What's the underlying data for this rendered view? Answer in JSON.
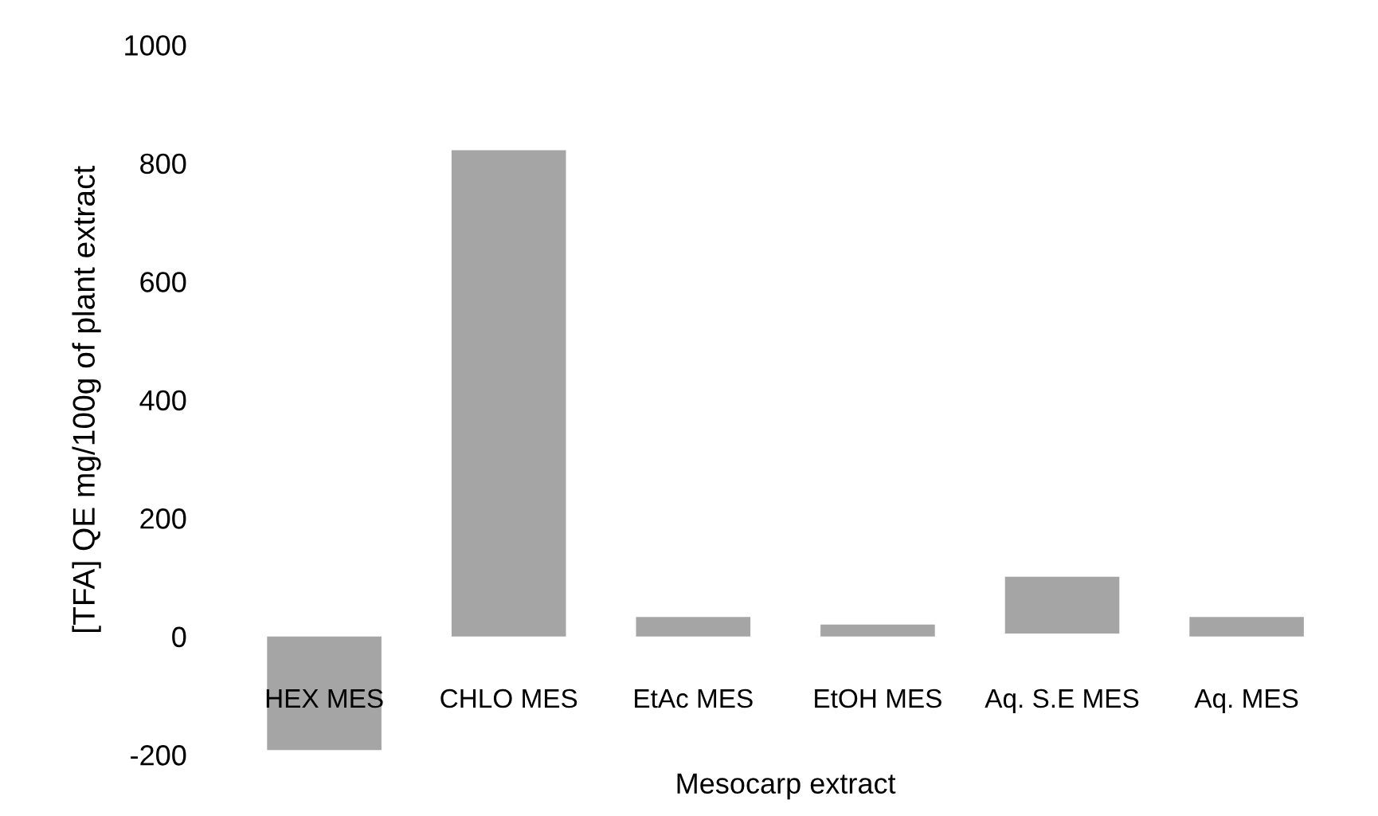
{
  "chart_data": {
    "type": "bar",
    "xlabel": "Mesocarp extract",
    "ylabel": "[TFA] QE mg/100g of plant extract",
    "categories": [
      "HEX MES",
      "CHLO MES",
      "EtAc MES",
      "EtOH MES",
      "Aq. S.E MES",
      "Aq. MES"
    ],
    "values": [
      -192,
      822,
      33,
      20,
      96,
      33
    ],
    "base": [
      0,
      0,
      0,
      0,
      5,
      0
    ],
    "color": "#a5a5a5",
    "ylim": [
      -200,
      1000
    ],
    "yticks": [
      -200,
      0,
      200,
      400,
      600,
      800,
      1000
    ],
    "grid": false
  }
}
